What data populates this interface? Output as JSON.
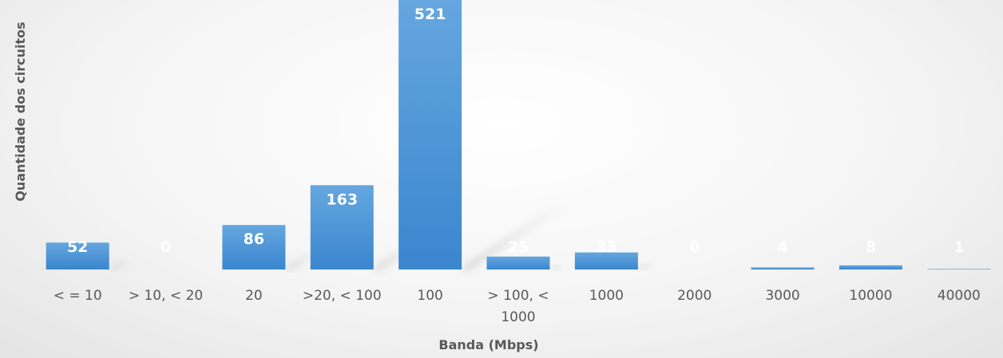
{
  "chart_data": {
    "type": "bar",
    "title": "",
    "xlabel": "Banda (Mbps)",
    "ylabel": "Quantidade dos circuitos",
    "categories": [
      "< = 10",
      "> 10, < 20",
      "20",
      ">20, < 100",
      "100",
      "> 100, < 1000",
      "1000",
      "2000",
      "3000",
      "10000",
      "40000"
    ],
    "category_lines": [
      [
        "< = 10"
      ],
      [
        "> 10, < 20"
      ],
      [
        "20"
      ],
      [
        ">20, < 100"
      ],
      [
        "100"
      ],
      [
        "> 100, <",
        "1000"
      ],
      [
        "1000"
      ],
      [
        "2000"
      ],
      [
        "3000"
      ],
      [
        "10000"
      ],
      [
        "40000"
      ]
    ],
    "values": [
      52,
      0,
      86,
      163,
      521,
      25,
      33,
      0,
      4,
      8,
      1
    ],
    "ylim": [
      0,
      521
    ],
    "grid": false,
    "legend": "none",
    "bar_color": "#4a90d9",
    "label_color": "#ffffff"
  }
}
